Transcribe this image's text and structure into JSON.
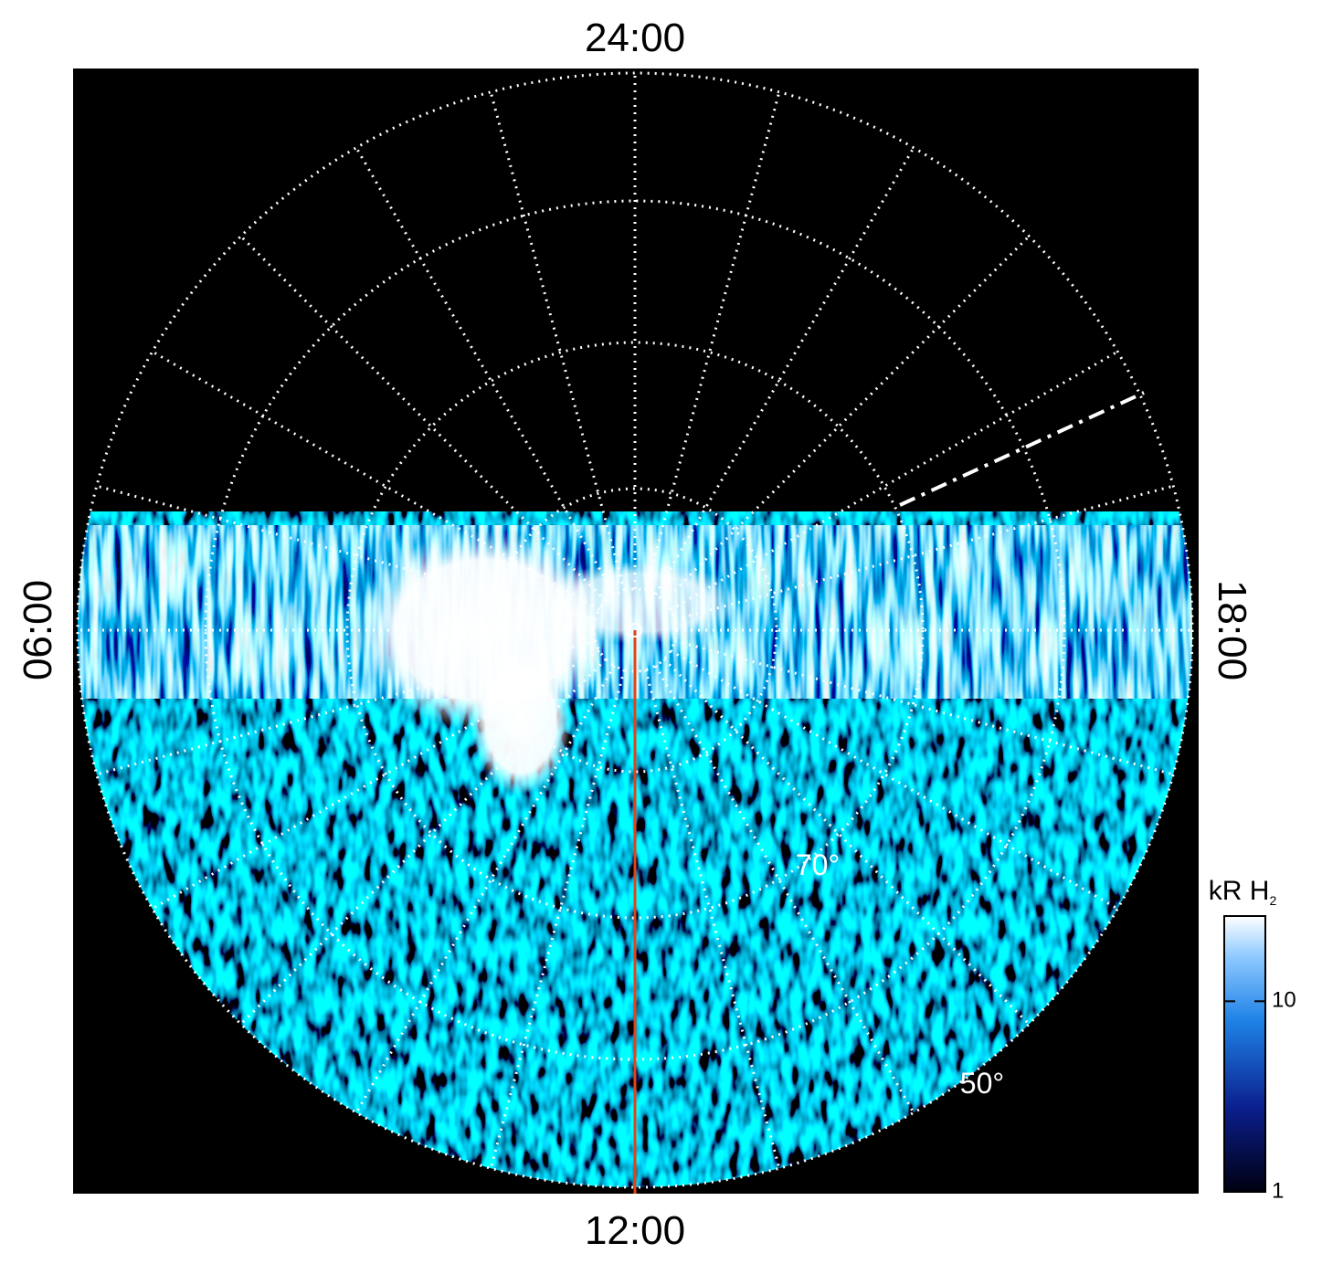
{
  "chart_data": {
    "type": "polar-map",
    "local_time_labels": {
      "top": "24:00",
      "bottom": "12:00",
      "left": "06:00",
      "right": "18:00"
    },
    "latitude_labels": [
      "70°",
      "50°"
    ],
    "colorbar": {
      "label": "kR H",
      "label_subscript": "2",
      "lim": [
        1,
        28
      ],
      "ticks": [
        1,
        10
      ],
      "log": true
    }
  }
}
